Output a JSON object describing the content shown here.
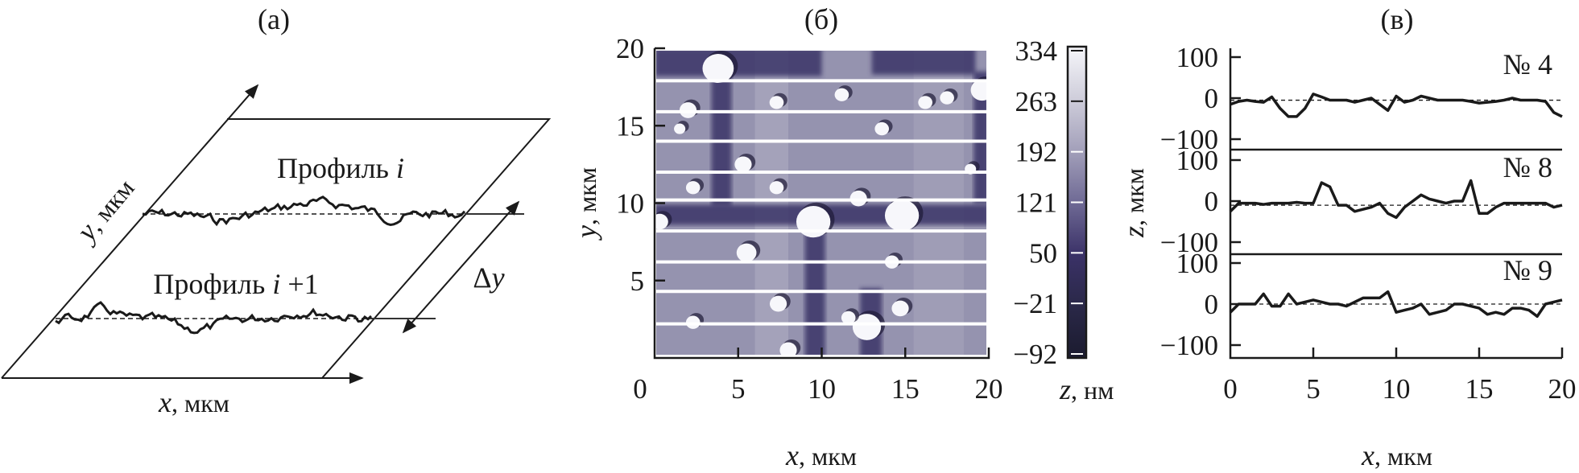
{
  "panels": {
    "a": {
      "title": "(а)",
      "profile_i_word": "Профиль ",
      "profile_i_var": "i",
      "profile_i1_word": "Профиль ",
      "profile_i1_var": "i",
      "profile_i1_suffix": " +1",
      "delta_y": "Δ",
      "delta_y_var": "y",
      "x_var": "x",
      "x_unit": ", мкм",
      "y_var": "y",
      "y_unit": ", мкм"
    },
    "b": {
      "title": "(б)"
    },
    "c": {
      "title": "(в)"
    }
  },
  "chart_data": [
    {
      "type": "heatmap",
      "title": "(б)",
      "xlabel_var": "x",
      "xlabel_unit": ", мкм",
      "ylabel_var": "y",
      "ylabel_unit": ", мкм",
      "xlim": [
        0,
        20
      ],
      "ylim": [
        0,
        20
      ],
      "x_ticks": [
        "0",
        "5",
        "10",
        "15",
        "20"
      ],
      "y_ticks": [
        "5",
        "10",
        "15",
        "20"
      ],
      "y_tick_values": [
        5,
        10,
        15,
        20
      ],
      "x_tick_values": [
        0,
        5,
        10,
        15,
        20
      ],
      "colorbar": {
        "label_var": "z",
        "label_unit": ", нм",
        "ticks": [
          "334",
          "263",
          "192",
          "121",
          "50",
          "−21",
          "−92"
        ],
        "range": [
          -92,
          334
        ],
        "colors": [
          "#f6f6fa",
          "#cfcedb",
          "#a3a0ba",
          "#6f6a95",
          "#3b3268",
          "#2a2848",
          "#1b1b2f"
        ]
      },
      "profile_lines_y": [
        17.9,
        15.9,
        14.0,
        12.0,
        10.2,
        8.2,
        6.2,
        4.3,
        2.2
      ]
    },
    {
      "type": "line",
      "title": "(в)",
      "xlabel_var": "x",
      "xlabel_unit": ", мкм",
      "ylabel_var": "z",
      "ylabel_unit": ", мкм",
      "xlim": [
        0,
        20
      ],
      "ylim": [
        -100,
        100
      ],
      "x_ticks": [
        "0",
        "5",
        "10",
        "15",
        "20"
      ],
      "x_tick_values": [
        0,
        5,
        10,
        15,
        20
      ],
      "y_ticks": [
        "100",
        "0",
        "−100"
      ],
      "y_tick_values": [
        100,
        0,
        -100
      ],
      "x": [
        0,
        0.5,
        1,
        1.5,
        2,
        2.5,
        3,
        3.5,
        4,
        4.5,
        5,
        5.5,
        6,
        6.5,
        7,
        7.5,
        8,
        8.5,
        9,
        9.5,
        10,
        10.5,
        11,
        11.5,
        12,
        12.5,
        13,
        13.5,
        14,
        14.5,
        15,
        15.5,
        16,
        16.5,
        17,
        17.5,
        18,
        18.5,
        19,
        19.5,
        20
      ],
      "series": [
        {
          "name": "№ 4",
          "baseline": -5,
          "values": [
            -15,
            -8,
            -5,
            -8,
            -10,
            3,
            -25,
            -45,
            -45,
            -25,
            10,
            3,
            -5,
            -5,
            -5,
            -10,
            -5,
            0,
            -15,
            -30,
            5,
            -10,
            -5,
            5,
            0,
            -5,
            -5,
            -5,
            -5,
            -8,
            -12,
            -10,
            -8,
            -5,
            0,
            -5,
            -5,
            -5,
            -8,
            -35,
            -45
          ]
        },
        {
          "name": "№ 8",
          "baseline": -10,
          "values": [
            -25,
            -5,
            -5,
            -5,
            -8,
            -5,
            -5,
            -5,
            -3,
            -5,
            -5,
            45,
            35,
            -10,
            -10,
            -25,
            -20,
            -15,
            -5,
            -30,
            -40,
            -15,
            0,
            15,
            5,
            0,
            -5,
            0,
            0,
            50,
            -30,
            -30,
            -15,
            -5,
            -5,
            -5,
            -5,
            -5,
            -5,
            -15,
            -10
          ]
        },
        {
          "name": "№ 9",
          "baseline": 0,
          "values": [
            -20,
            0,
            0,
            0,
            25,
            -5,
            -5,
            25,
            0,
            5,
            10,
            5,
            0,
            0,
            -5,
            5,
            15,
            15,
            15,
            30,
            -20,
            -15,
            -10,
            0,
            -25,
            -20,
            -15,
            0,
            0,
            -5,
            -10,
            -25,
            -20,
            -25,
            -10,
            -10,
            -15,
            -30,
            0,
            5,
            10
          ]
        }
      ]
    }
  ]
}
